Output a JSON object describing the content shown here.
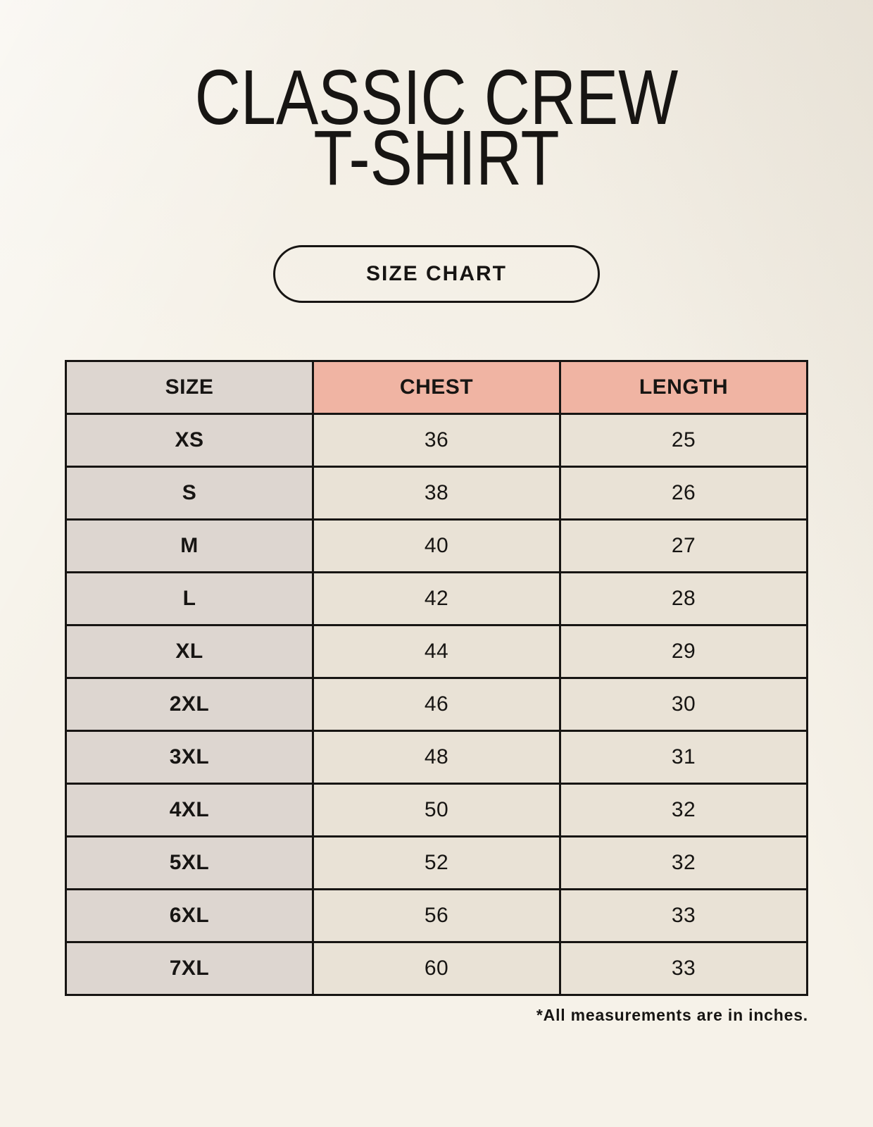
{
  "page": {
    "title_line1": "CLASSIC CREW",
    "title_line2": "T-SHIRT",
    "button_label": "SIZE CHART",
    "footnote": "*All measurements are in inches."
  },
  "colors": {
    "background": "#f6f2e9",
    "header_accent_pink": "#f0b4a3",
    "size_column_grey": "#ddd6d0",
    "data_cell_beige": "#e9e2d6",
    "border_and_text": "#171513"
  },
  "chart_data": {
    "type": "table",
    "title": "CLASSIC CREW T-SHIRT",
    "columns": [
      "SIZE",
      "CHEST",
      "LENGTH"
    ],
    "rows": [
      [
        "XS",
        "36",
        "25"
      ],
      [
        "S",
        "38",
        "26"
      ],
      [
        "M",
        "40",
        "27"
      ],
      [
        "L",
        "42",
        "28"
      ],
      [
        "XL",
        "44",
        "29"
      ],
      [
        "2XL",
        "46",
        "30"
      ],
      [
        "3XL",
        "48",
        "31"
      ],
      [
        "4XL",
        "50",
        "32"
      ],
      [
        "5XL",
        "52",
        "32"
      ],
      [
        "6XL",
        "56",
        "33"
      ],
      [
        "7XL",
        "60",
        "33"
      ]
    ],
    "units_note": "*All measurements are in inches."
  }
}
